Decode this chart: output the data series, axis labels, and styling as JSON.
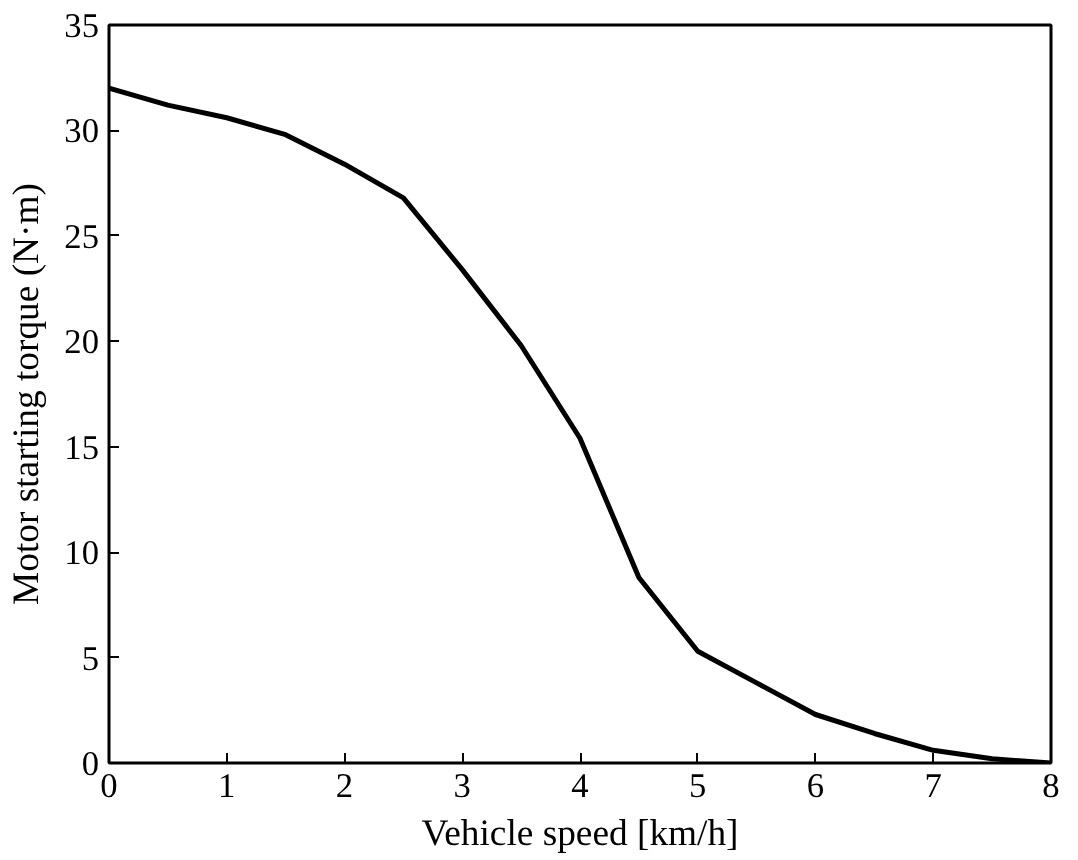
{
  "chart_data": {
    "type": "line",
    "xlabel": "Vehicle speed [km/h]",
    "ylabel": "Motor starting torque (N·m)",
    "x": [
      0,
      0.5,
      1,
      1.5,
      2,
      2.5,
      3,
      3.5,
      4,
      4.5,
      5,
      5.5,
      6,
      6.5,
      7,
      7.5,
      8
    ],
    "series": [
      {
        "color": "#000000",
        "values": [
          32,
          31.2,
          30.6,
          29.8,
          28.4,
          26.8,
          23.4,
          19.8,
          15.4,
          8.8,
          5.3,
          3.8,
          2.3,
          1.4,
          0.6,
          0.2,
          0
        ]
      }
    ],
    "xlim": [
      0,
      8
    ],
    "ylim": [
      0,
      35
    ],
    "xticks": [
      0,
      1,
      2,
      3,
      4,
      5,
      6,
      7,
      8
    ],
    "yticks": [
      0,
      5,
      10,
      15,
      20,
      25,
      30,
      35
    ],
    "grid": false,
    "marker": "none",
    "line_style": "solid"
  }
}
